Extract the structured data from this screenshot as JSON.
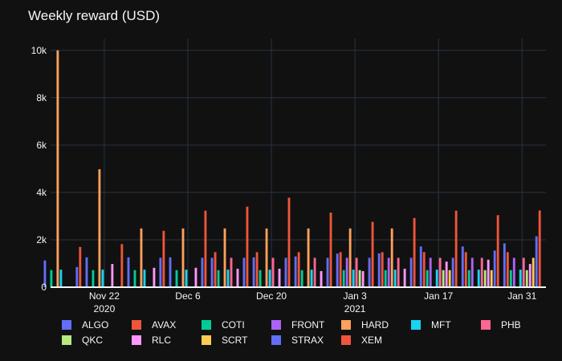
{
  "chart_data": {
    "type": "bar",
    "title": "Weekly reward (USD)",
    "xlabel": "",
    "ylabel": "",
    "ylim": [
      0,
      10500
    ],
    "grid": true,
    "legend_position": "bottom",
    "y_ticks": [
      {
        "value": 0,
        "label": "0"
      },
      {
        "value": 2000,
        "label": "2k"
      },
      {
        "value": 4000,
        "label": "4k"
      },
      {
        "value": 6000,
        "label": "6k"
      },
      {
        "value": 8000,
        "label": "8k"
      },
      {
        "value": 10000,
        "label": "10k"
      }
    ],
    "x_ticks": [
      {
        "date": "2020-11-22",
        "label": "Nov 22",
        "sublabel": "2020"
      },
      {
        "date": "2020-12-06",
        "label": "Dec 6",
        "sublabel": ""
      },
      {
        "date": "2020-12-20",
        "label": "Dec 20",
        "sublabel": ""
      },
      {
        "date": "2021-01-03",
        "label": "Jan 3",
        "sublabel": "2021"
      },
      {
        "date": "2021-01-17",
        "label": "Jan 17",
        "sublabel": ""
      },
      {
        "date": "2021-01-31",
        "label": "Jan 31",
        "sublabel": ""
      }
    ],
    "x_range": [
      "2020-11-13",
      "2021-02-04"
    ],
    "series": [
      {
        "name": "ALGO",
        "color": "#636efa",
        "points": [
          [
            "2020-11-15",
            1130
          ],
          [
            "2020-11-22",
            1260
          ],
          [
            "2020-11-29",
            1260
          ],
          [
            "2020-12-06",
            1260
          ],
          [
            "2020-12-13",
            1240
          ],
          [
            "2020-12-20",
            1260
          ],
          [
            "2020-12-27",
            1300
          ],
          [
            "2021-01-03",
            1420
          ],
          [
            "2021-01-10",
            1430
          ],
          [
            "2021-01-17",
            1720
          ],
          [
            "2021-01-24",
            1720
          ],
          [
            "2021-01-31",
            1850
          ]
        ]
      },
      {
        "name": "AVAX",
        "color": "#EF553B",
        "points": [
          [
            "2020-12-13",
            1480
          ],
          [
            "2020-12-20",
            1480
          ],
          [
            "2020-12-27",
            1480
          ],
          [
            "2021-01-03",
            1480
          ],
          [
            "2021-01-10",
            1480
          ],
          [
            "2021-01-17",
            1480
          ],
          [
            "2021-01-24",
            1480
          ],
          [
            "2021-01-31",
            1480
          ]
        ]
      },
      {
        "name": "COTI",
        "color": "#00cc96",
        "points": [
          [
            "2020-11-15",
            720
          ],
          [
            "2020-11-22",
            720
          ],
          [
            "2020-11-29",
            720
          ],
          [
            "2020-12-06",
            720
          ],
          [
            "2020-12-13",
            720
          ],
          [
            "2020-12-20",
            720
          ],
          [
            "2020-12-27",
            720
          ],
          [
            "2021-01-03",
            720
          ],
          [
            "2021-01-10",
            720
          ],
          [
            "2021-01-17",
            720
          ],
          [
            "2021-01-24",
            720
          ],
          [
            "2021-01-31",
            720
          ]
        ]
      },
      {
        "name": "FRONT",
        "color": "#ab63fa",
        "points": [
          [
            "2021-01-03",
            1240
          ],
          [
            "2021-01-10",
            1240
          ],
          [
            "2021-01-17",
            1240
          ],
          [
            "2021-01-24",
            1240
          ],
          [
            "2021-01-31",
            1240
          ]
        ]
      },
      {
        "name": "HARD",
        "color": "#FFA15A",
        "points": [
          [
            "2020-11-15",
            10000
          ],
          [
            "2020-11-22",
            4980
          ],
          [
            "2020-11-29",
            2480
          ],
          [
            "2020-12-06",
            2480
          ],
          [
            "2020-12-13",
            2480
          ],
          [
            "2020-12-20",
            2480
          ],
          [
            "2020-12-27",
            2480
          ],
          [
            "2021-01-03",
            2480
          ],
          [
            "2021-01-10",
            2480
          ]
        ]
      },
      {
        "name": "MFT",
        "color": "#19d3f3",
        "points": [
          [
            "2020-11-15",
            740
          ],
          [
            "2020-11-22",
            740
          ],
          [
            "2020-11-29",
            740
          ],
          [
            "2020-12-06",
            740
          ],
          [
            "2020-12-13",
            740
          ],
          [
            "2020-12-20",
            740
          ],
          [
            "2020-12-27",
            740
          ],
          [
            "2021-01-03",
            740
          ],
          [
            "2021-01-10",
            740
          ],
          [
            "2021-01-17",
            740
          ],
          [
            "2021-01-24",
            740
          ],
          [
            "2021-01-31",
            740
          ]
        ]
      },
      {
        "name": "PHB",
        "color": "#FF6692",
        "points": [
          [
            "2020-12-13",
            1240
          ],
          [
            "2020-12-20",
            1240
          ],
          [
            "2020-12-27",
            1240
          ],
          [
            "2021-01-03",
            1240
          ],
          [
            "2021-01-10",
            1240
          ],
          [
            "2021-01-17",
            1240
          ],
          [
            "2021-01-24",
            1240
          ],
          [
            "2021-01-31",
            1240
          ]
        ]
      },
      {
        "name": "QKC",
        "color": "#B6E880",
        "points": [
          [
            "2021-01-03",
            720
          ],
          [
            "2021-01-17",
            720
          ],
          [
            "2021-01-24",
            720
          ],
          [
            "2021-01-31",
            720
          ]
        ]
      },
      {
        "name": "RLC",
        "color": "#FF97FF",
        "points": [
          [
            "2020-11-22",
            980
          ],
          [
            "2020-11-29",
            820
          ],
          [
            "2020-12-06",
            820
          ],
          [
            "2020-12-13",
            780
          ],
          [
            "2020-12-20",
            780
          ],
          [
            "2020-12-27",
            680
          ],
          [
            "2021-01-03",
            680
          ],
          [
            "2021-01-10",
            780
          ],
          [
            "2021-01-17",
            1080
          ],
          [
            "2021-01-24",
            1160
          ],
          [
            "2021-01-31",
            980
          ]
        ]
      },
      {
        "name": "SCRT",
        "color": "#FECB52",
        "points": [
          [
            "2021-01-17",
            720
          ],
          [
            "2021-01-24",
            720
          ],
          [
            "2021-01-31",
            1240
          ]
        ]
      },
      {
        "name": "STRAX",
        "color": "#636efa",
        "points": [
          [
            "2020-11-15",
            850
          ],
          [
            "2020-11-29",
            1240
          ],
          [
            "2020-12-06",
            1240
          ],
          [
            "2020-12-13",
            1240
          ],
          [
            "2020-12-20",
            1240
          ],
          [
            "2020-12-27",
            1240
          ],
          [
            "2021-01-03",
            1240
          ],
          [
            "2021-01-10",
            1240
          ],
          [
            "2021-01-17",
            1240
          ],
          [
            "2021-01-24",
            1550
          ],
          [
            "2021-01-31",
            2150
          ]
        ]
      },
      {
        "name": "XEM",
        "color": "#EF553B",
        "points": [
          [
            "2020-11-15",
            1700
          ],
          [
            "2020-11-22",
            1820
          ],
          [
            "2020-11-29",
            2380
          ],
          [
            "2020-12-06",
            3230
          ],
          [
            "2020-12-13",
            3400
          ],
          [
            "2020-12-20",
            3780
          ],
          [
            "2020-12-27",
            3150
          ],
          [
            "2021-01-03",
            2760
          ],
          [
            "2021-01-10",
            2920
          ],
          [
            "2021-01-17",
            3230
          ],
          [
            "2021-01-24",
            3040
          ],
          [
            "2021-01-31",
            3240
          ]
        ]
      }
    ]
  }
}
